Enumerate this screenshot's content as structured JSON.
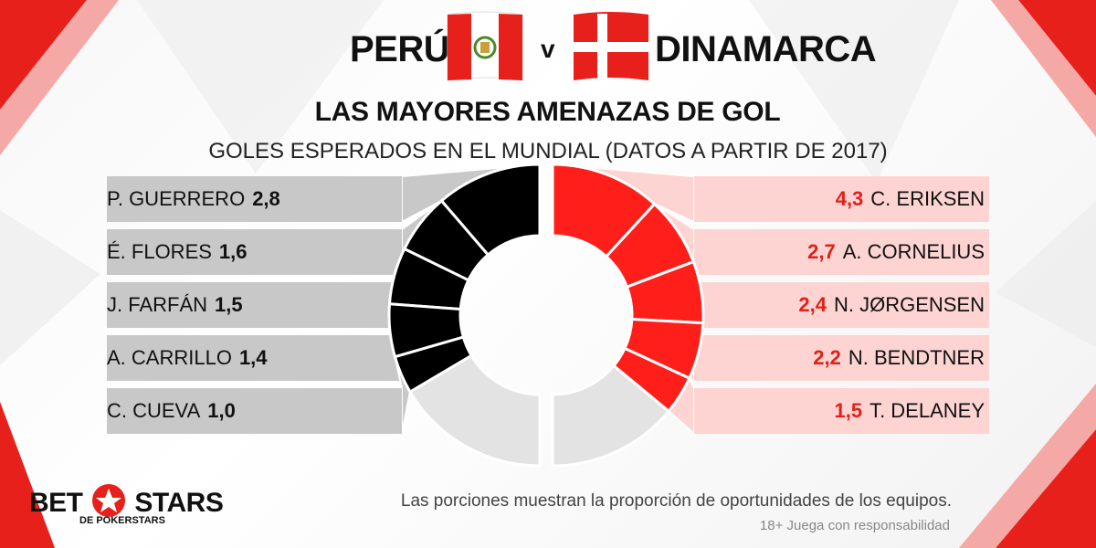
{
  "header": {
    "team_left": "PERÚ",
    "versus": "v",
    "team_right": "DINAMARCA",
    "title": "LAS MAYORES AMENAZAS DE GOL",
    "caption": "GOLES ESPERADOS EN EL MUNDIAL (DATOS A PARTIR DE 2017)"
  },
  "chart_data": [
    {
      "type": "donut",
      "side": "left",
      "team": "PERÚ",
      "categories": [
        "P. GUERRERO",
        "É. FLORES",
        "J. FARFÁN",
        "A. CARRILLO",
        "C. CUEVA"
      ],
      "values": [
        2.8,
        1.6,
        1.5,
        1.4,
        1.0
      ],
      "value_labels": [
        "2,8",
        "1,6",
        "1,5",
        "1,4",
        "1,0"
      ],
      "share_of_team_chances": 0.67,
      "color": "#000000",
      "row_color": "#c8c8c8"
    },
    {
      "type": "donut",
      "side": "right",
      "team": "DINAMARCA",
      "categories": [
        "C. ERIKSEN",
        "A. CORNELIUS",
        "N. JØRGENSEN",
        "N. BENDTNER",
        "T. DELANEY"
      ],
      "values": [
        4.3,
        2.7,
        2.4,
        2.2,
        1.5
      ],
      "value_labels": [
        "4,3",
        "2,7",
        "2,4",
        "2,2",
        "1,5"
      ],
      "share_of_team_chances": 0.72,
      "color": "#ff1f1a",
      "row_color": "#fdd4d2"
    }
  ],
  "footer": {
    "note": "Las porciones muestran la proporción de oportunidades de los equipos.",
    "disclaimer": "18+ Juega con responsabilidad",
    "logo_left": "BET",
    "logo_right": "STARS",
    "logo_sub": "DE POKERSTARS"
  },
  "colors": {
    "accent_red": "#e0201a",
    "dark": "#000000",
    "grey_remainder": "#e3e3e3"
  }
}
